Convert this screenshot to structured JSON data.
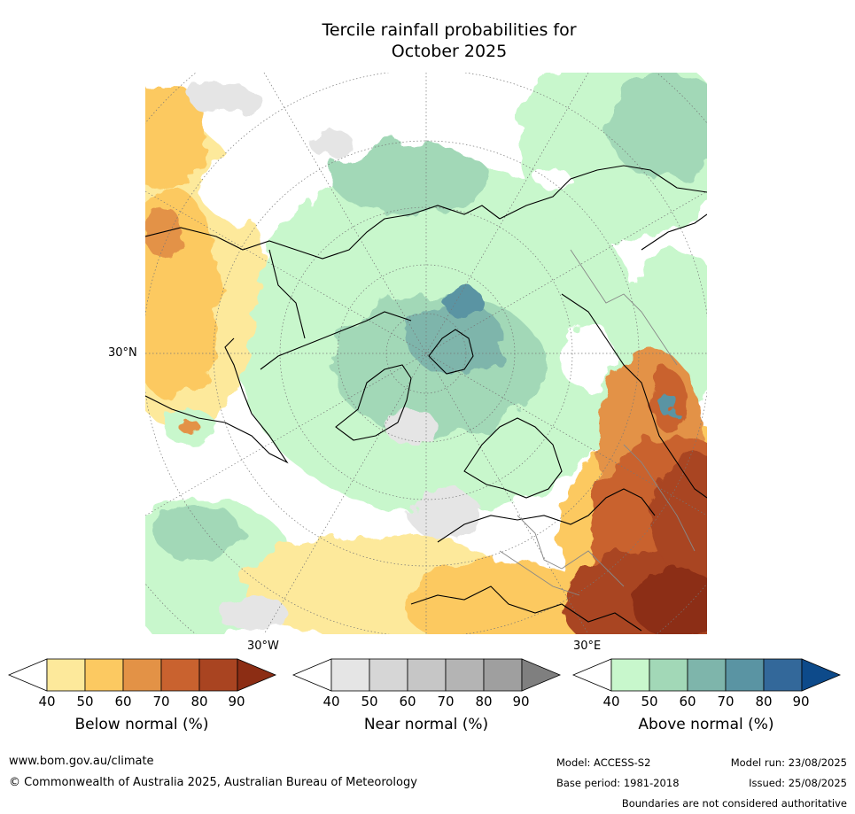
{
  "title_line1": "Tercile rainfall probabilities for",
  "title_line2": "October 2025",
  "map": {
    "lat_label": "30°N",
    "lon_label_west": "30°W",
    "lon_label_east": "30°E"
  },
  "colorbars": [
    {
      "title": "Below normal (%)",
      "ticks": [
        "40",
        "50",
        "60",
        "70",
        "80",
        "90"
      ],
      "colors": [
        "#ffffff",
        "#fde99b",
        "#fcc961",
        "#e39246",
        "#c9622f",
        "#a94421",
        "#8c2d14"
      ]
    },
    {
      "title": "Near normal (%)",
      "ticks": [
        "40",
        "50",
        "60",
        "70",
        "80",
        "90"
      ],
      "colors": [
        "#ffffff",
        "#e5e5e5",
        "#d6d6d6",
        "#c6c6c6",
        "#b4b4b4",
        "#9f9f9f",
        "#7f7f7f"
      ]
    },
    {
      "title": "Above normal (%)",
      "ticks": [
        "40",
        "50",
        "60",
        "70",
        "80",
        "90"
      ],
      "colors": [
        "#ffffff",
        "#c8f7cc",
        "#a2d8b7",
        "#7eb5ab",
        "#5a94a3",
        "#33689a",
        "#0d4a8a"
      ]
    }
  ],
  "footer": {
    "website": "www.bom.gov.au/climate",
    "copyright": "© Commonwealth of Australia 2025, Australian Bureau of Meteorology",
    "model": "Model: ACCESS-S2",
    "base_period": "Base period: 1981-2018",
    "model_run": "Model run: 23/08/2025",
    "issued": "Issued: 25/08/2025",
    "disclaimer": "Boundaries are not considered authoritative"
  }
}
